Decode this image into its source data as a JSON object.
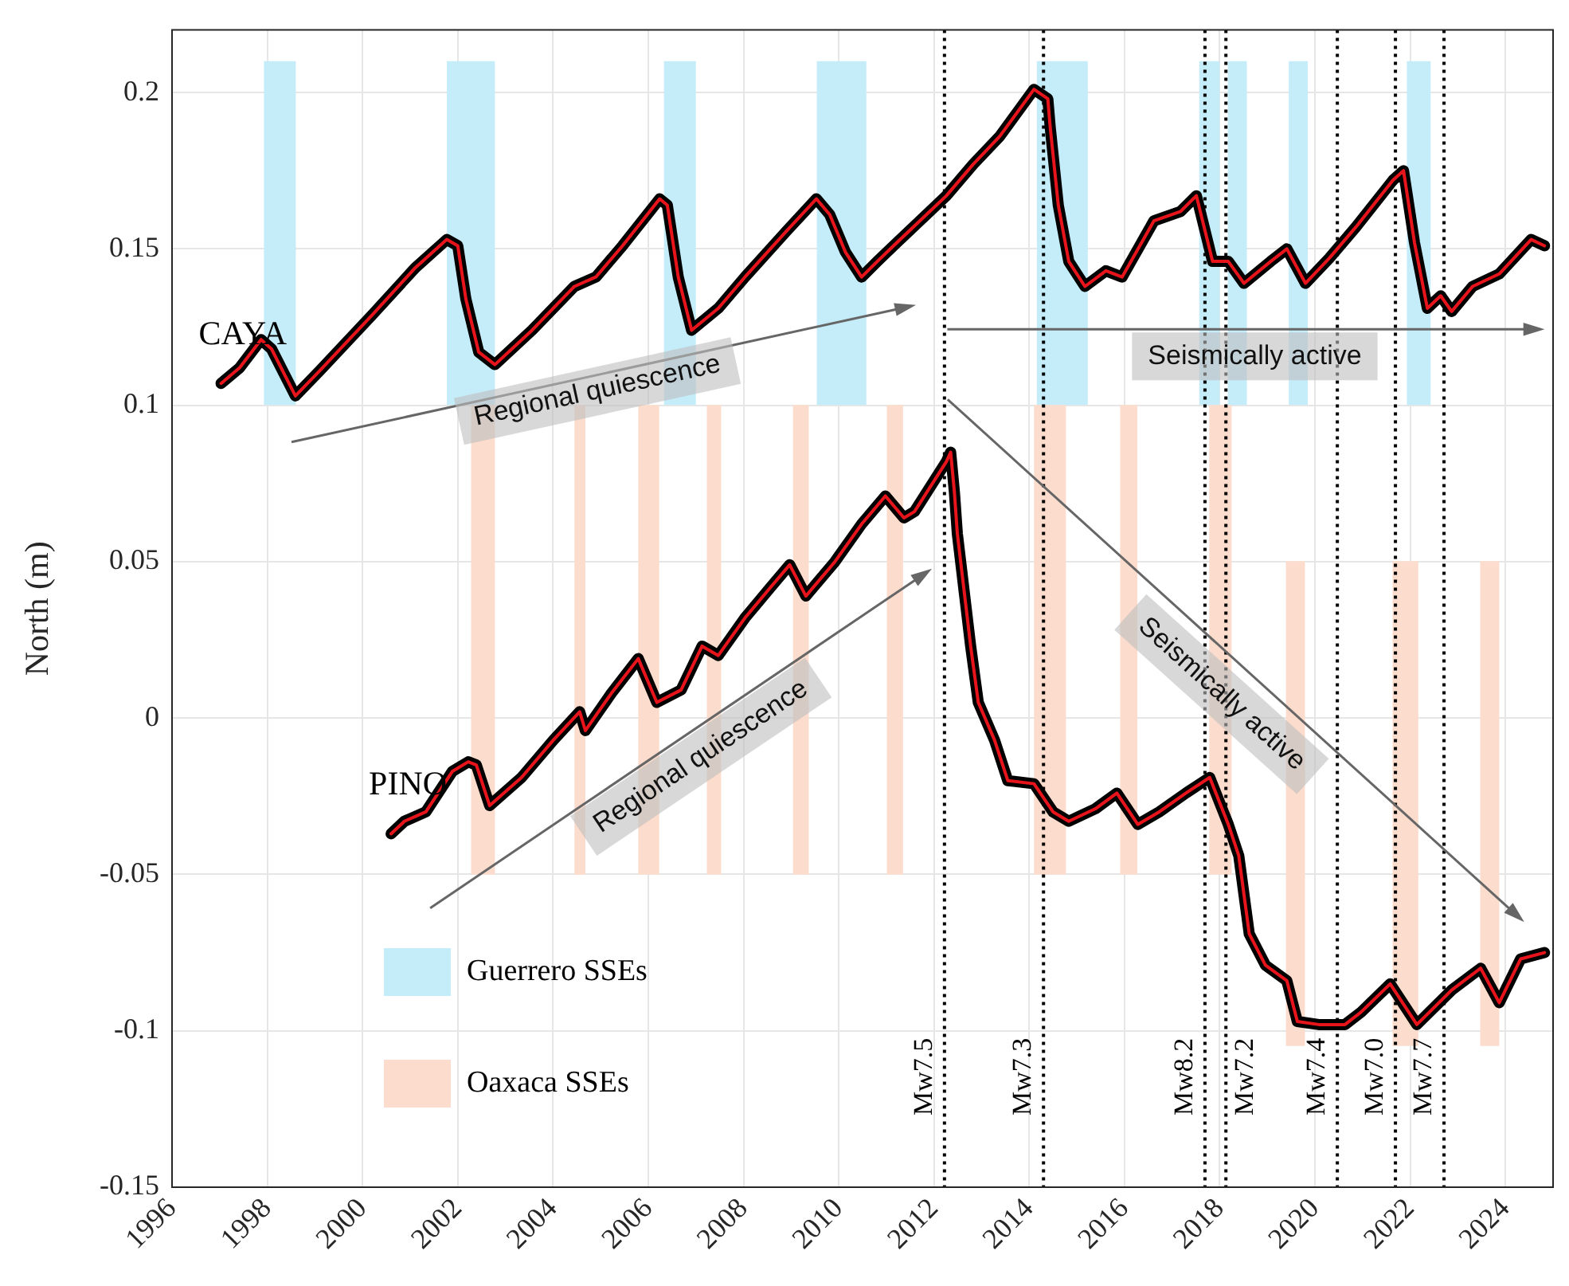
{
  "chart_data": {
    "type": "line",
    "ylabel": "North (m)",
    "xlim": [
      1996,
      2025
    ],
    "xticks": [
      1996,
      1998,
      2000,
      2002,
      2004,
      2006,
      2008,
      2010,
      2012,
      2014,
      2016,
      2018,
      2020,
      2022,
      2024
    ],
    "ylim": [
      -0.15,
      0.22
    ],
    "yticks": [
      -0.15,
      -0.1,
      -0.05,
      0,
      0.05,
      0.1,
      0.15,
      0.2
    ],
    "grid": true,
    "legend": "bottom left",
    "series": [
      {
        "name": "CAYA",
        "color": "#000000",
        "x": [
          1997.03,
          1997.42,
          1997.87,
          1998.09,
          1998.59,
          1999.1,
          2000.21,
          2001.11,
          2001.77,
          2002.0,
          2002.17,
          2002.44,
          2002.78,
          2003.56,
          2004.45,
          2004.9,
          2005.46,
          2006.24,
          2006.4,
          2006.63,
          2006.91,
          2007.47,
          2008.03,
          2008.92,
          2009.53,
          2009.81,
          2010.14,
          2010.48,
          2010.81,
          2011.15,
          2012.26,
          2012.82,
          2013.38,
          2014.1,
          2014.39,
          2014.44,
          2014.61,
          2014.83,
          2015.17,
          2015.61,
          2015.95,
          2016.62,
          2017.18,
          2017.51,
          2017.85,
          2018.18,
          2018.51,
          2019.07,
          2019.41,
          2019.8,
          2020.3,
          2020.86,
          2021.64,
          2021.86,
          2022.09,
          2022.36,
          2022.64,
          2022.87,
          2023.31,
          2023.87,
          2024.54,
          2024.82
        ],
        "values": [
          0.107,
          0.112,
          0.121,
          0.118,
          0.103,
          0.111,
          0.129,
          0.144,
          0.153,
          0.151,
          0.134,
          0.117,
          0.113,
          0.124,
          0.138,
          0.141,
          0.151,
          0.166,
          0.164,
          0.141,
          0.124,
          0.131,
          0.141,
          0.156,
          0.166,
          0.161,
          0.149,
          0.141,
          0.146,
          0.151,
          0.167,
          0.177,
          0.186,
          0.201,
          0.198,
          0.189,
          0.164,
          0.146,
          0.138,
          0.143,
          0.141,
          0.159,
          0.162,
          0.167,
          0.146,
          0.146,
          0.139,
          0.146,
          0.15,
          0.139,
          0.147,
          0.157,
          0.172,
          0.175,
          0.152,
          0.131,
          0.135,
          0.13,
          0.138,
          0.142,
          0.153,
          0.151
        ]
      },
      {
        "color": "#e8141b",
        "x": [
          1997.03,
          1997.42,
          1997.87,
          1998.09,
          1998.59,
          1999.1,
          2000.21,
          2001.11,
          2001.77,
          2002.0,
          2002.17,
          2002.44,
          2002.78,
          2003.56,
          2004.45,
          2004.9,
          2005.46,
          2006.24,
          2006.4,
          2006.63,
          2006.91,
          2007.47,
          2008.03,
          2008.92,
          2009.53,
          2009.81,
          2010.14,
          2010.48,
          2010.81,
          2011.15,
          2012.26,
          2012.82,
          2013.38,
          2014.1,
          2014.39,
          2014.44,
          2014.61,
          2014.83,
          2015.17,
          2015.61,
          2015.95,
          2016.62,
          2017.18,
          2017.51,
          2017.85,
          2018.18,
          2018.51,
          2019.07,
          2019.41,
          2019.8,
          2020.3,
          2020.86,
          2021.64,
          2021.86,
          2022.09,
          2022.36,
          2022.64,
          2022.87,
          2023.31,
          2023.87,
          2024.54,
          2024.82
        ],
        "values": [
          0.107,
          0.112,
          0.121,
          0.118,
          0.103,
          0.111,
          0.129,
          0.144,
          0.153,
          0.151,
          0.134,
          0.117,
          0.113,
          0.124,
          0.138,
          0.141,
          0.151,
          0.166,
          0.164,
          0.141,
          0.124,
          0.131,
          0.141,
          0.156,
          0.166,
          0.161,
          0.149,
          0.141,
          0.146,
          0.151,
          0.167,
          0.177,
          0.186,
          0.201,
          0.198,
          0.189,
          0.164,
          0.146,
          0.138,
          0.143,
          0.141,
          0.159,
          0.162,
          0.167,
          0.146,
          0.146,
          0.139,
          0.146,
          0.15,
          0.139,
          0.147,
          0.157,
          0.172,
          0.175,
          0.152,
          0.131,
          0.135,
          0.13,
          0.138,
          0.142,
          0.153,
          0.151
        ]
      },
      {
        "name": "PINO",
        "color": "#000000",
        "x": [
          2000.6,
          2000.88,
          2001.33,
          2001.89,
          2002.22,
          2002.39,
          2002.67,
          2003.34,
          2004.01,
          2004.56,
          2004.68,
          2005.23,
          2005.79,
          2006.18,
          2006.69,
          2007.13,
          2007.47,
          2008.03,
          2008.58,
          2008.97,
          2009.31,
          2009.92,
          2010.48,
          2010.98,
          2011.37,
          2011.59,
          2012.26,
          2012.35,
          2012.43,
          2012.49,
          2012.77,
          2012.93,
          2013.27,
          2013.55,
          2014.1,
          2014.5,
          2014.83,
          2015.39,
          2015.84,
          2016.28,
          2016.73,
          2017.29,
          2017.79,
          2018.18,
          2018.4,
          2018.62,
          2018.96,
          2019.41,
          2019.63,
          2020.08,
          2020.63,
          2020.97,
          2021.58,
          2022.14,
          2022.87,
          2023.48,
          2023.87,
          2024.32,
          2024.82
        ],
        "values": [
          -0.037,
          -0.033,
          -0.03,
          -0.017,
          -0.014,
          -0.015,
          -0.028,
          -0.019,
          -0.007,
          0.002,
          -0.004,
          0.008,
          0.019,
          0.005,
          0.009,
          0.023,
          0.02,
          0.032,
          0.042,
          0.049,
          0.039,
          0.05,
          0.062,
          0.071,
          0.064,
          0.066,
          0.082,
          0.085,
          0.072,
          0.059,
          0.023,
          0.005,
          -0.007,
          -0.02,
          -0.021,
          -0.03,
          -0.033,
          -0.029,
          -0.024,
          -0.034,
          -0.03,
          -0.024,
          -0.019,
          -0.034,
          -0.044,
          -0.069,
          -0.079,
          -0.084,
          -0.097,
          -0.098,
          -0.098,
          -0.094,
          -0.085,
          -0.098,
          -0.087,
          -0.08,
          -0.091,
          -0.077,
          -0.075
        ]
      },
      {
        "color": "#e8141b",
        "x": [
          2000.6,
          2000.88,
          2001.33,
          2001.89,
          2002.22,
          2002.39,
          2002.67,
          2003.34,
          2004.01,
          2004.56,
          2004.68,
          2005.23,
          2005.79,
          2006.18,
          2006.69,
          2007.13,
          2007.47,
          2008.03,
          2008.58,
          2008.97,
          2009.31,
          2009.92,
          2010.48,
          2010.98,
          2011.37,
          2011.59,
          2012.26,
          2012.35,
          2012.43,
          2012.49,
          2012.77,
          2012.93,
          2013.27,
          2013.55,
          2014.1,
          2014.5,
          2014.83,
          2015.39,
          2015.84,
          2016.28,
          2016.73,
          2017.29,
          2017.79,
          2018.18,
          2018.4,
          2018.62,
          2018.96,
          2019.41,
          2019.63,
          2020.08,
          2020.63,
          2020.97,
          2021.58,
          2022.14,
          2022.87,
          2023.48,
          2023.87,
          2024.32,
          2024.82
        ],
        "values": [
          -0.037,
          -0.033,
          -0.03,
          -0.017,
          -0.014,
          -0.015,
          -0.028,
          -0.019,
          -0.007,
          0.002,
          -0.004,
          0.008,
          0.019,
          0.005,
          0.009,
          0.023,
          0.02,
          0.032,
          0.042,
          0.049,
          0.039,
          0.05,
          0.062,
          0.071,
          0.064,
          0.066,
          0.082,
          0.085,
          0.072,
          0.059,
          0.023,
          0.005,
          -0.007,
          -0.02,
          -0.021,
          -0.03,
          -0.033,
          -0.029,
          -0.024,
          -0.034,
          -0.03,
          -0.024,
          -0.019,
          -0.034,
          -0.044,
          -0.069,
          -0.079,
          -0.084,
          -0.097,
          -0.098,
          -0.098,
          -0.094,
          -0.085,
          -0.098,
          -0.087,
          -0.08,
          -0.091,
          -0.077,
          -0.075
        ]
      }
    ],
    "bands": [
      {
        "axis": "x",
        "from": 1997.93,
        "to": 1998.6,
        "color": "#c5ecf9",
        "label": "Guerrero SSEs"
      },
      {
        "axis": "x",
        "from": 2001.77,
        "to": 2002.78,
        "color": "#c5ecf9"
      },
      {
        "axis": "x",
        "from": 2006.33,
        "to": 2007.0,
        "color": "#c5ecf9"
      },
      {
        "axis": "x",
        "from": 2009.54,
        "to": 2010.58,
        "color": "#c5ecf9"
      },
      {
        "axis": "x",
        "from": 2014.16,
        "to": 2015.23,
        "color": "#c5ecf9"
      },
      {
        "axis": "x",
        "from": 2017.57,
        "to": 2018.0,
        "color": "#c5ecf9"
      },
      {
        "axis": "x",
        "from": 2018.17,
        "to": 2018.57,
        "color": "#c5ecf9"
      },
      {
        "axis": "x",
        "from": 2019.45,
        "to": 2019.85,
        "color": "#c5ecf9"
      },
      {
        "axis": "x",
        "from": 2021.93,
        "to": 2022.43,
        "color": "#c5ecf9"
      },
      {
        "axis": "x",
        "from": 2002.28,
        "to": 2002.78,
        "color": "#fbdccd",
        "label": "Oaxaca SSEs"
      },
      {
        "axis": "x",
        "from": 2004.45,
        "to": 2004.68,
        "color": "#fbdccd"
      },
      {
        "axis": "x",
        "from": 2005.79,
        "to": 2006.23,
        "color": "#fbdccd"
      },
      {
        "axis": "x",
        "from": 2007.23,
        "to": 2007.53,
        "color": "#fbdccd"
      },
      {
        "axis": "x",
        "from": 2009.04,
        "to": 2009.37,
        "color": "#fbdccd"
      },
      {
        "axis": "x",
        "from": 2011.01,
        "to": 2011.35,
        "color": "#fbdccd"
      },
      {
        "axis": "x",
        "from": 2014.1,
        "to": 2014.77,
        "color": "#fbdccd"
      },
      {
        "axis": "x",
        "from": 2015.91,
        "to": 2016.27,
        "color": "#fbdccd"
      },
      {
        "axis": "x",
        "from": 2017.78,
        "to": 2018.25,
        "color": "#fbdccd"
      },
      {
        "axis": "x",
        "from": 2019.39,
        "to": 2019.79,
        "color": "#fbdccd"
      },
      {
        "axis": "x",
        "from": 2021.63,
        "to": 2022.17,
        "color": "#fbdccd"
      },
      {
        "axis": "x",
        "from": 2023.47,
        "to": 2023.87,
        "color": "#fbdccd"
      }
    ],
    "ref_lines": [
      {
        "axis": "x",
        "value": 2012.22,
        "label": "Mw7.5",
        "color": "#000000",
        "line_style": "dotted"
      },
      {
        "axis": "x",
        "value": 2014.3,
        "label": "Mw7.3",
        "color": "#000000",
        "line_style": "dotted"
      },
      {
        "axis": "x",
        "value": 2017.69,
        "label": "Mw8.2",
        "color": "#000000",
        "line_style": "dotted"
      },
      {
        "axis": "x",
        "value": 2018.13,
        "label": "Mw7.2",
        "color": "#000000",
        "line_style": "dotted"
      },
      {
        "axis": "x",
        "value": 2020.47,
        "label": "Mw7.4",
        "color": "#000000",
        "line_style": "dotted"
      },
      {
        "axis": "x",
        "value": 2021.69,
        "label": "Mw7.0",
        "color": "#000000",
        "line_style": "dotted"
      },
      {
        "axis": "x",
        "value": 2022.71,
        "label": "Mw7.7",
        "color": "#000000",
        "line_style": "dotted"
      }
    ],
    "annotations": [
      "Regional quiescence",
      "Regional quiescence",
      "Seismically active",
      "Seismically active"
    ]
  }
}
